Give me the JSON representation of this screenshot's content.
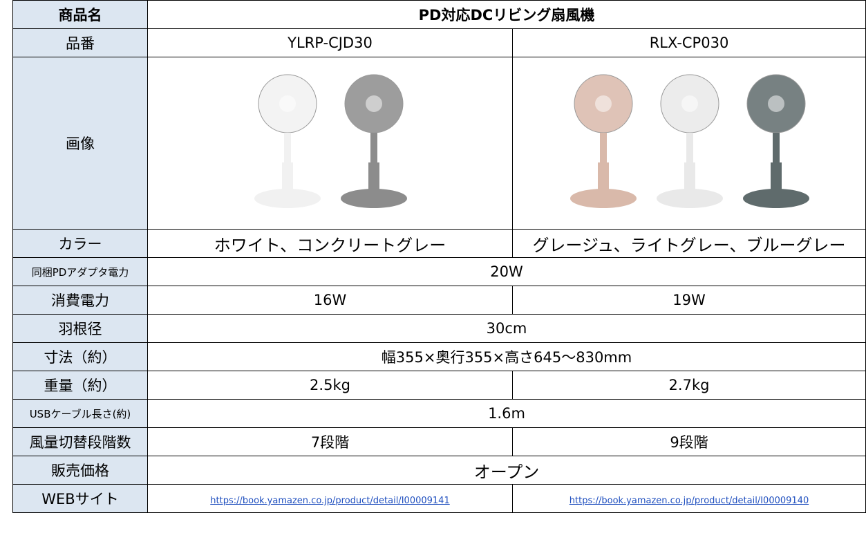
{
  "table": {
    "rows": [
      {
        "label": "商品名",
        "values": [
          "PD対応DCリビング扇風機"
        ]
      },
      {
        "label": "品番",
        "values": [
          "YLRP-CJD30",
          "RLX-CP030"
        ]
      },
      {
        "label": "画像",
        "values": []
      },
      {
        "label": "カラー",
        "values": [
          "ホワイト、コンクリートグレー",
          "グレージュ、ライトグレー、ブルーグレー"
        ]
      },
      {
        "label": "同梱PDアダプタ電力",
        "values": [
          "20W"
        ]
      },
      {
        "label": "消費電力",
        "values": [
          "16W",
          "19W"
        ]
      },
      {
        "label": "羽根径",
        "values": [
          "30cm"
        ]
      },
      {
        "label": "寸法（約）",
        "values": [
          "幅355×奥行355×高さ645～830mm"
        ]
      },
      {
        "label": "重量（約）",
        "values": [
          "2.5kg",
          "2.7kg"
        ]
      },
      {
        "label": "USBケーブル長さ(約)",
        "values": [
          "1.6m"
        ]
      },
      {
        "label": "風量切替段階数",
        "values": [
          "7段階",
          "9段階"
        ]
      },
      {
        "label": "販売価格",
        "values": [
          "オープン"
        ]
      },
      {
        "label": "WEBサイト",
        "values": [
          "https://book.yamazen.co.jp/product/detail/I00009141",
          "https://book.yamazen.co.jp/product/detail/I00009140"
        ]
      }
    ]
  }
}
